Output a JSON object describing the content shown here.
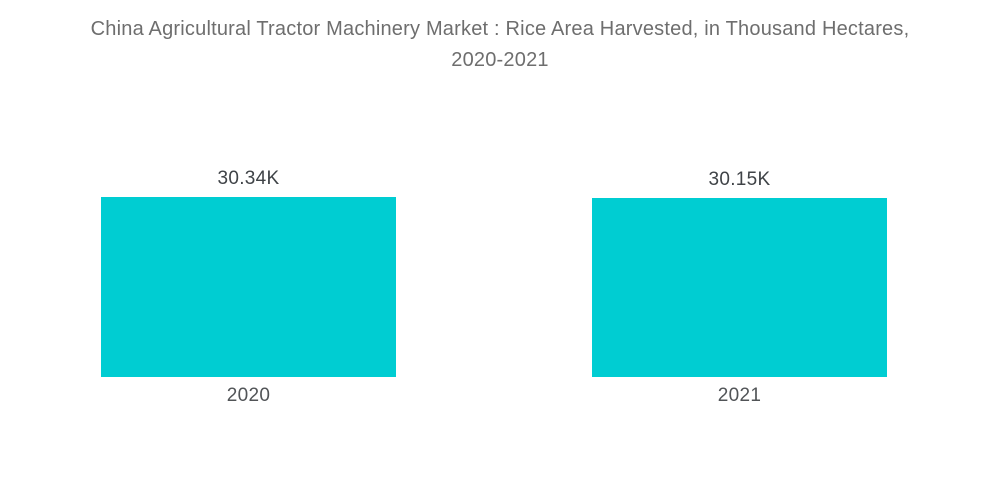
{
  "title": {
    "line1": "China Agricultural Tractor Machinery Market : Rice Area Harvested, in Thousand Hectares,",
    "line2": "2020-2021"
  },
  "colors": {
    "bar": "#00CDD2",
    "title_text": "#6E6E6E",
    "value_label": "#3F4347",
    "axis_label": "#515457",
    "background": "#FFFFFF"
  },
  "chart_data": {
    "type": "bar",
    "title": "China Agricultural Tractor Machinery Market : Rice Area Harvested, in Thousand Hectares, 2020-2021",
    "unit": "Thousand Hectares",
    "categories": [
      "2020",
      "2021"
    ],
    "values": [
      30340,
      30150
    ],
    "value_labels": [
      "30.34K",
      "30.15K"
    ],
    "ylim": [
      0,
      30340
    ],
    "grid": false,
    "legend": false,
    "bar_color": "#00CDD2"
  }
}
